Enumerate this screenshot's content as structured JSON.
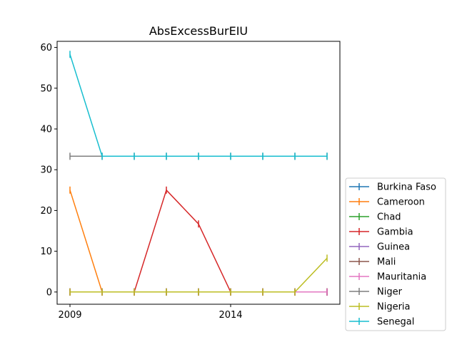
{
  "chart_data": {
    "type": "line",
    "title": "AbsExcessBurEIU",
    "xlabel": "",
    "ylabel": "",
    "x": [
      2009,
      2010,
      2011,
      2012,
      2013,
      2014,
      2015,
      2016,
      2017
    ],
    "xlim": [
      2008.6,
      2017.4
    ],
    "ylim": [
      -3,
      61.5
    ],
    "x_ticks": [
      2009,
      2014
    ],
    "y_ticks": [
      0,
      10,
      20,
      30,
      40,
      50,
      60
    ],
    "grid": false,
    "legend_placement": "outside-lower-right",
    "marker": "vertical-tick",
    "series": [
      {
        "name": "Burkina Faso",
        "color": "#1f77b4",
        "values": [
          0,
          0,
          0,
          0,
          0,
          0,
          0,
          0,
          0
        ]
      },
      {
        "name": "Cameroon",
        "color": "#ff7f0e",
        "values": [
          25,
          0,
          0,
          0,
          0,
          0,
          0,
          0,
          0
        ]
      },
      {
        "name": "Chad",
        "color": "#2ca02c",
        "values": [
          0,
          0,
          0,
          0,
          0,
          0,
          0,
          0,
          0
        ]
      },
      {
        "name": "Gambia",
        "color": "#d62728",
        "values": [
          0,
          0,
          0,
          25,
          16.7,
          0,
          0,
          0,
          0
        ]
      },
      {
        "name": "Guinea",
        "color": "#9467bd",
        "values": [
          0,
          0,
          0,
          0,
          0,
          0,
          0,
          0,
          0
        ]
      },
      {
        "name": "Mali",
        "color": "#8c564b",
        "values": [
          0,
          0,
          0,
          0,
          0,
          0,
          0,
          0,
          0
        ]
      },
      {
        "name": "Mauritania",
        "color": "#e377c2",
        "values": [
          0,
          0,
          0,
          0,
          0,
          0,
          0,
          0,
          0
        ]
      },
      {
        "name": "Niger",
        "color": "#7f7f7f",
        "values": [
          33.3,
          33.3,
          33.3,
          33.3,
          33.3,
          33.3,
          33.3,
          33.3,
          33.3
        ]
      },
      {
        "name": "Nigeria",
        "color": "#bcbd22",
        "values": [
          0,
          0,
          0,
          0,
          0,
          0,
          0,
          0,
          8.3
        ]
      },
      {
        "name": "Senegal",
        "color": "#17becf",
        "values": [
          58.3,
          33.3,
          33.3,
          33.3,
          33.3,
          33.3,
          33.3,
          33.3,
          33.3
        ]
      }
    ]
  }
}
